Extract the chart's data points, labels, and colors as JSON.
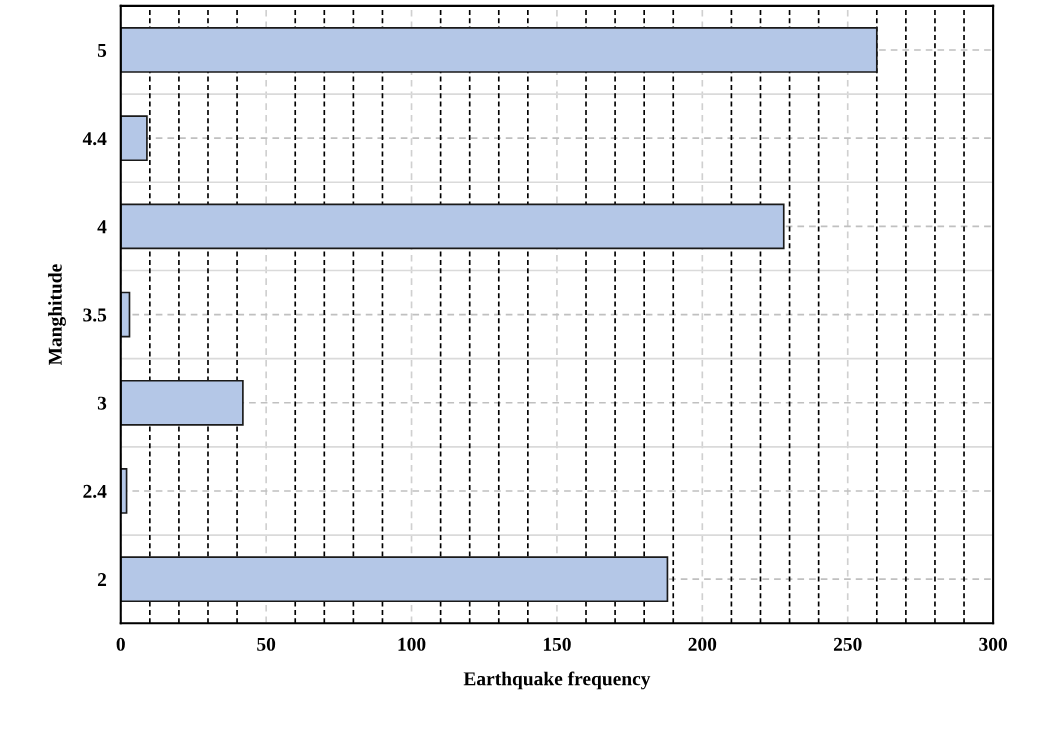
{
  "chart_data": {
    "type": "bar",
    "orientation": "horizontal",
    "xlabel": "Earthquake frequency",
    "ylabel": "Manghitude",
    "categories": [
      "5",
      "4.4",
      "4",
      "3.5",
      "3",
      "2.4",
      "2"
    ],
    "values": [
      260,
      9,
      228,
      3,
      42,
      2,
      188
    ],
    "color": "#b4c7e7",
    "xlim": [
      0,
      300
    ],
    "xticks": [
      0,
      {
        "value": 10,
        "label": null
      },
      {
        "value": 20,
        "label": null
      },
      {
        "value": 30,
        "label": null
      },
      {
        "value": 40,
        "label": null
      },
      50,
      {
        "value": 60,
        "label": null
      },
      {
        "value": 70,
        "label": null
      },
      {
        "value": 80,
        "label": null
      },
      {
        "value": 90,
        "label": null
      },
      100,
      {
        "value": 110,
        "label": null
      },
      {
        "value": 120,
        "label": null
      },
      {
        "value": 130,
        "label": null
      },
      {
        "value": 140,
        "label": null
      },
      150,
      {
        "value": 160,
        "label": null
      },
      {
        "value": 170,
        "label": null
      },
      {
        "value": 180,
        "label": null
      },
      {
        "value": 190,
        "label": null
      },
      200,
      {
        "value": 210,
        "label": null
      },
      {
        "value": 220,
        "label": null
      },
      {
        "value": 230,
        "label": null
      },
      {
        "value": 240,
        "label": null
      },
      250,
      {
        "value": 260,
        "label": null
      },
      {
        "value": 270,
        "label": null
      },
      {
        "value": 280,
        "label": null
      },
      {
        "value": 290,
        "label": null
      },
      300
    ],
    "grid": true
  }
}
